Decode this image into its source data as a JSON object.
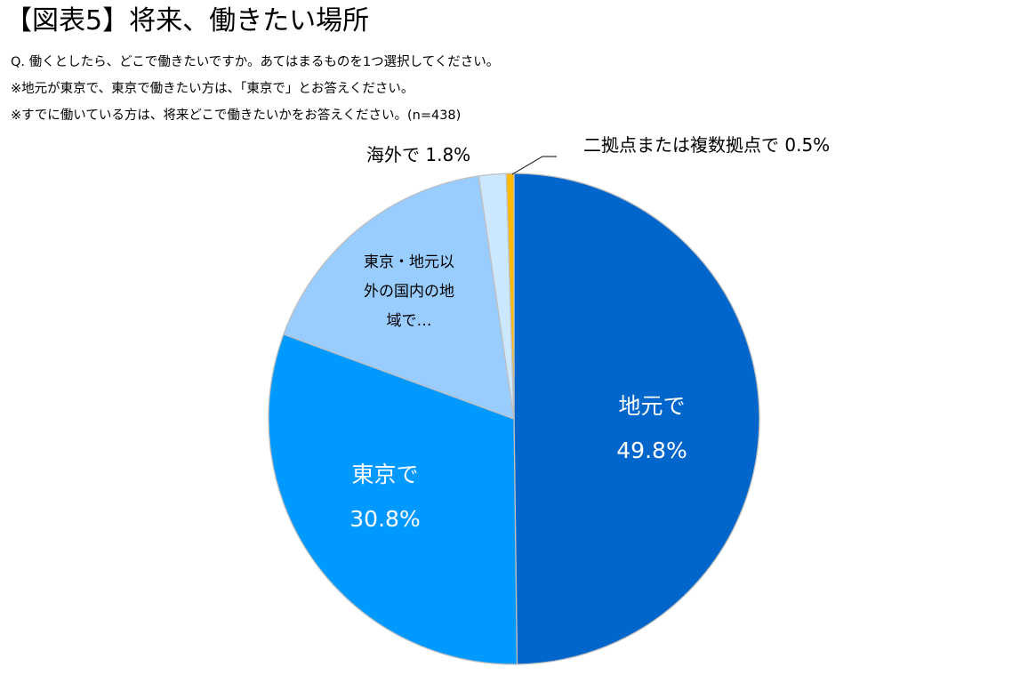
{
  "header": {
    "title": "【図表5】将来、働きたい場所",
    "question": "Q. 働くとしたら、どこで働きたいですか。あてはまるものを1つ選択してください。",
    "note1": "※地元が東京で、東京で働きたい方は、「東京で」とお答えください。",
    "note2": "※すでに働いている方は、将来どこで働きたいかをお答えください。(n=438)"
  },
  "labels": {
    "jimoto_name": "地元で",
    "jimoto_value": "49.8%",
    "tokyo_name": "東京で",
    "tokyo_value": "30.8%",
    "other_line1": "東京・地元以",
    "other_line2": "外の国内の地",
    "other_line3": "域で…",
    "overseas": "海外で 1.8%",
    "multi": "二拠点または複数拠点で 0.5%"
  },
  "chart_data": {
    "type": "pie",
    "title": "【図表5】将来、働きたい場所",
    "n": 438,
    "start_angle": "12 o'clock, clockwise",
    "categories": [
      "地元で",
      "東京で",
      "東京・地元以外の国内の地域で",
      "海外で",
      "二拠点または複数拠点で"
    ],
    "values": [
      49.8,
      30.8,
      17.1,
      1.8,
      0.5
    ],
    "colors": [
      "#0066CC",
      "#0099FF",
      "#99CCFF",
      "#CCE8FF",
      "#FFB900"
    ],
    "slice_border": "#BFBFBF",
    "legend": "none (data labels)"
  }
}
